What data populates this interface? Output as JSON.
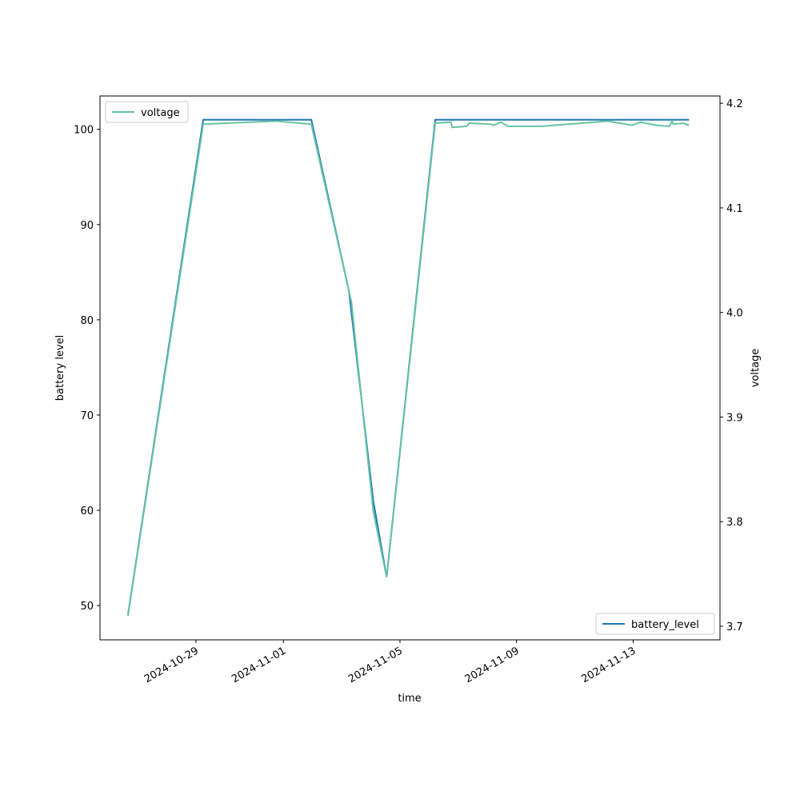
{
  "chart_data": {
    "type": "line",
    "xlabel": "time",
    "ylabel": "battery level",
    "y2label": "voltage",
    "xlim": [
      "2024-10-25T17:00",
      "2024-11-15T23:30"
    ],
    "xticks": [
      "2024-10-29",
      "2024-11-01",
      "2024-11-05",
      "2024-11-09",
      "2024-11-13"
    ],
    "ylim": [
      46.4,
      103.5
    ],
    "yticks": [
      50,
      60,
      70,
      80,
      90,
      100
    ],
    "y2lim": [
      3.687,
      4.207
    ],
    "y2ticks": [
      3.7,
      3.8,
      3.9,
      {
        "value": 4,
        "label": "4.0"
      },
      4.1,
      4.2
    ],
    "series": [
      {
        "name": "battery_level",
        "color": "#1f77b4",
        "legend": "lower right",
        "x": [
          "2024-10-26T16:00",
          "2024-10-29T06:00",
          "2024-11-01T23:00",
          "2024-11-03T06:00",
          "2024-11-04T02:00",
          "2024-11-04T13:00",
          "2024-11-06T05:00",
          "2024-11-14T22:00"
        ],
        "values": [
          49,
          101,
          101,
          83,
          61,
          53,
          101,
          101
        ]
      },
      {
        "name": "voltage",
        "color": "#66c2a5",
        "axis": "y2",
        "legend": "upper left",
        "x": [
          "2024-10-26T16:00",
          "2024-10-29T06:00",
          "2024-10-31T18:00",
          "2024-11-01T23:00",
          "2024-11-03T08:00",
          "2024-11-04T02:00",
          "2024-11-04T13:00",
          "2024-11-06T05:00",
          "2024-11-06T18:00",
          "2024-11-06T19:00",
          "2024-11-07T07:00",
          "2024-11-07T09:00",
          "2024-11-08T03:00",
          "2024-11-08T05:00",
          "2024-11-08T11:00",
          "2024-11-08T17:00",
          "2024-11-09T21:00",
          "2024-11-12T03:00",
          "2024-11-12T23:00",
          "2024-11-13T06:00",
          "2024-11-13T19:00",
          "2024-11-14T06:00",
          "2024-11-14T08:00",
          "2024-11-14T09:00",
          "2024-11-14T17:00",
          "2024-11-14T22:00"
        ],
        "values": [
          3.71,
          4.18,
          4.183,
          4.18,
          4.01,
          3.81,
          3.747,
          4.181,
          4.182,
          4.177,
          4.178,
          4.181,
          4.18,
          4.179,
          4.182,
          4.178,
          4.178,
          4.183,
          4.179,
          4.182,
          4.179,
          4.178,
          4.183,
          4.18,
          4.181,
          4.179
        ]
      }
    ]
  }
}
